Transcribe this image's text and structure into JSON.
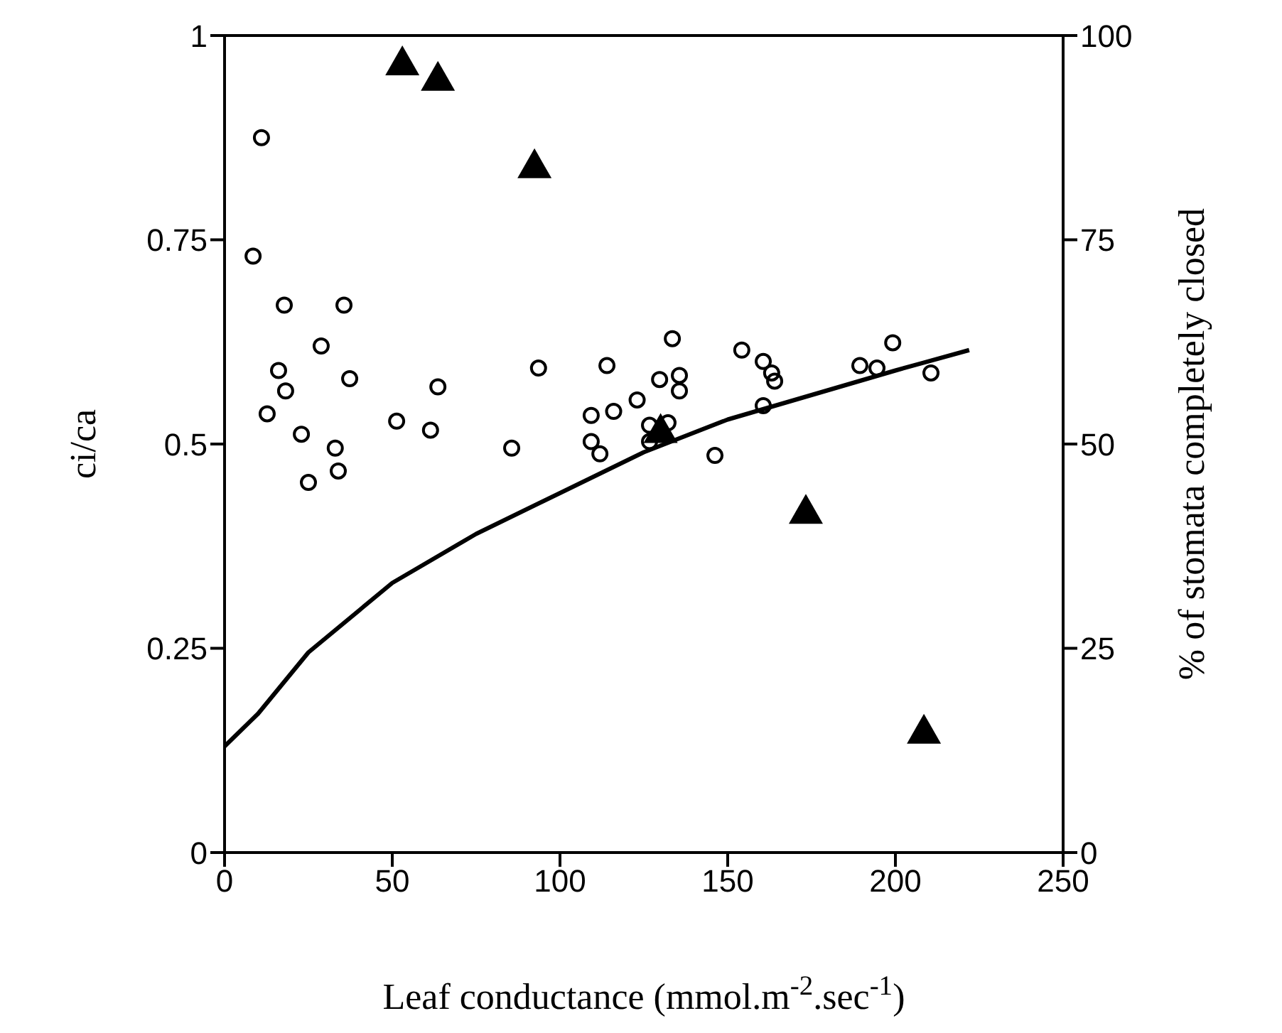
{
  "chart_data": {
    "type": "scatter",
    "xlabel": "Leaf conductance (mmol.m$^{-2}$.sec$^{-1}$)",
    "ylabel": "ci/ca",
    "y2label": "% of stomata completely closed",
    "xlim": [
      0,
      250
    ],
    "xticks": [
      0,
      50,
      100,
      150,
      200,
      250
    ],
    "ylim": [
      0,
      1
    ],
    "yticks": [
      0,
      0.25,
      0.5,
      0.75,
      1
    ],
    "y2lim": [
      0,
      100
    ],
    "y2ticks": [
      0,
      25,
      50,
      75,
      100
    ],
    "series": [
      {
        "marker": "circle",
        "color": "#000000",
        "x": [
          11,
          8.5,
          17.8,
          35.6,
          28.8,
          16.1,
          37.3,
          18.2,
          12.7,
          22.9,
          33,
          33.9,
          25,
          51.3,
          61.4,
          63.6,
          85.6,
          93.6,
          114,
          133.5,
          109.3,
          116,
          123,
          129.7,
          135.6,
          135.6,
          109.3,
          111.9,
          126.7,
          132.2,
          126.7,
          146.2,
          154.2,
          160.6,
          163.1,
          164,
          160.6,
          189.4,
          194.5,
          199.2,
          210.6
        ],
        "values": [
          0.875,
          0.73,
          0.67,
          0.67,
          0.62,
          0.59,
          0.58,
          0.565,
          0.537,
          0.512,
          0.495,
          0.467,
          0.453,
          0.528,
          0.517,
          0.57,
          0.495,
          0.593,
          0.596,
          0.629,
          0.535,
          0.54,
          0.554,
          0.579,
          0.584,
          0.565,
          0.503,
          0.488,
          0.523,
          0.526,
          0.503,
          0.486,
          0.615,
          0.601,
          0.587,
          0.577,
          0.547,
          0.596,
          0.593,
          0.624,
          0.587
        ]
      },
      {
        "type": "line",
        "marker": "none",
        "color": "#000000",
        "x": [
          0,
          10,
          25,
          50,
          75,
          100,
          125,
          150,
          175,
          200,
          222
        ],
        "values": [
          0.13,
          0.17,
          0.245,
          0.33,
          0.39,
          0.44,
          0.49,
          0.53,
          0.56,
          0.59,
          0.615
        ]
      },
      {
        "marker": "triangle",
        "axis": "y2",
        "color": "#000000",
        "x": [
          53,
          63.6,
          92.4,
          130,
          173.3,
          208.5
        ],
        "values": [
          96.7,
          94.8,
          84.1,
          51.7,
          41.8,
          14.9
        ]
      }
    ]
  }
}
